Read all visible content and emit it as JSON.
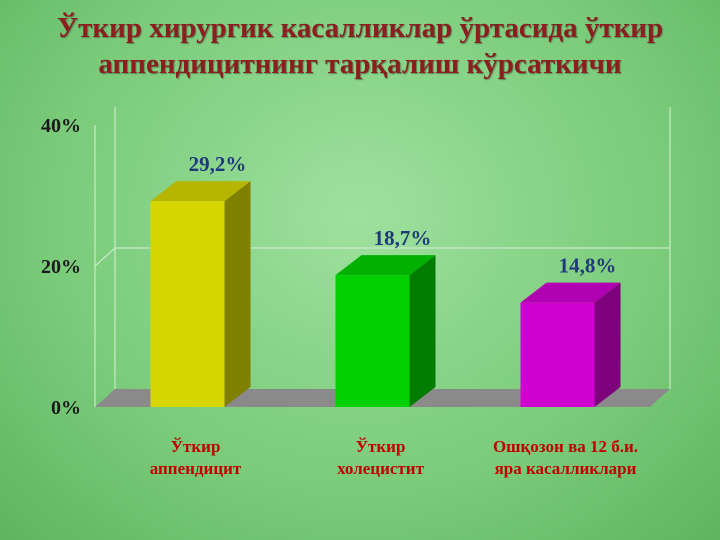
{
  "chart_data": {
    "type": "bar3d",
    "title": "Ўткир хирургик касалликлар ўртасида ўткир\nаппендицитнинг тарқалиш кўрсаткичи",
    "categories": [
      "Ўткир\nаппендицит",
      "Ўткир\nхолецистит",
      "Ошқозон ва 12 б.и.\nяра касалликлари"
    ],
    "series": [
      {
        "colors": [
          "#d6d600",
          "#00d000",
          "#d000d0"
        ],
        "values": [
          29.2,
          18.7,
          14.8
        ],
        "value_labels": [
          "29,2%",
          "18,7%",
          "14,8%"
        ]
      }
    ],
    "ylim": [
      0,
      40
    ],
    "yticks": [
      {
        "value": 0,
        "label": "0%"
      },
      {
        "value": 20,
        "label": "20%"
      },
      {
        "value": 40,
        "label": "40%"
      }
    ],
    "grid": true
  }
}
